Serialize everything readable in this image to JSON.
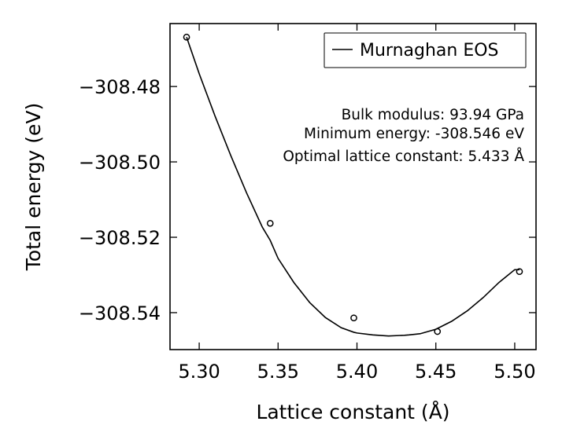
{
  "chart_data": {
    "type": "scatter",
    "title": "",
    "xlabel": "Lattice constant (Å)",
    "ylabel": "Total energy (eV)",
    "xlim": [
      5.2815,
      5.5135
    ],
    "ylim": [
      -308.5498,
      -308.4633
    ],
    "xticks": [
      5.3,
      5.35,
      5.4,
      5.45,
      5.5
    ],
    "xtick_labels": [
      "5.30",
      "5.35",
      "5.40",
      "5.45",
      "5.50"
    ],
    "yticks": [
      -308.48,
      -308.5,
      -308.52,
      -308.54
    ],
    "ytick_labels": [
      "−308.48",
      "−308.50",
      "−308.52",
      "−308.54"
    ],
    "grid": false,
    "legend_position": "top-right",
    "series": [
      {
        "name": "Murnaghan EOS",
        "kind": "line",
        "color": "#000000",
        "x": [
          5.292,
          5.3,
          5.31,
          5.32,
          5.33,
          5.34,
          5.345,
          5.35,
          5.36,
          5.37,
          5.38,
          5.39,
          5.398,
          5.4,
          5.41,
          5.42,
          5.43,
          5.433,
          5.44,
          5.45,
          5.46,
          5.47,
          5.48,
          5.49,
          5.5,
          5.503
        ],
        "y": [
          -308.4669,
          -308.4766,
          -308.4878,
          -308.4983,
          -308.5082,
          -308.5173,
          -308.5208,
          -308.5256,
          -308.532,
          -308.5373,
          -308.5413,
          -308.544,
          -308.5452,
          -308.5454,
          -308.5459,
          -308.5462,
          -308.546,
          -308.5459,
          -308.5456,
          -308.5444,
          -308.5423,
          -308.5395,
          -308.536,
          -308.532,
          -308.5286,
          -308.5286
        ]
      },
      {
        "name": "",
        "kind": "points",
        "color": "#000000",
        "x": [
          5.292,
          5.345,
          5.398,
          5.451,
          5.503
        ],
        "y": [
          -308.4669,
          -308.5163,
          -308.5414,
          -308.545,
          -308.5291
        ]
      }
    ],
    "annotations": [
      "Bulk modulus: 93.94 GPa",
      "Minimum energy: -308.546 eV",
      "Optimal lattice constant: 5.433 Å"
    ]
  }
}
